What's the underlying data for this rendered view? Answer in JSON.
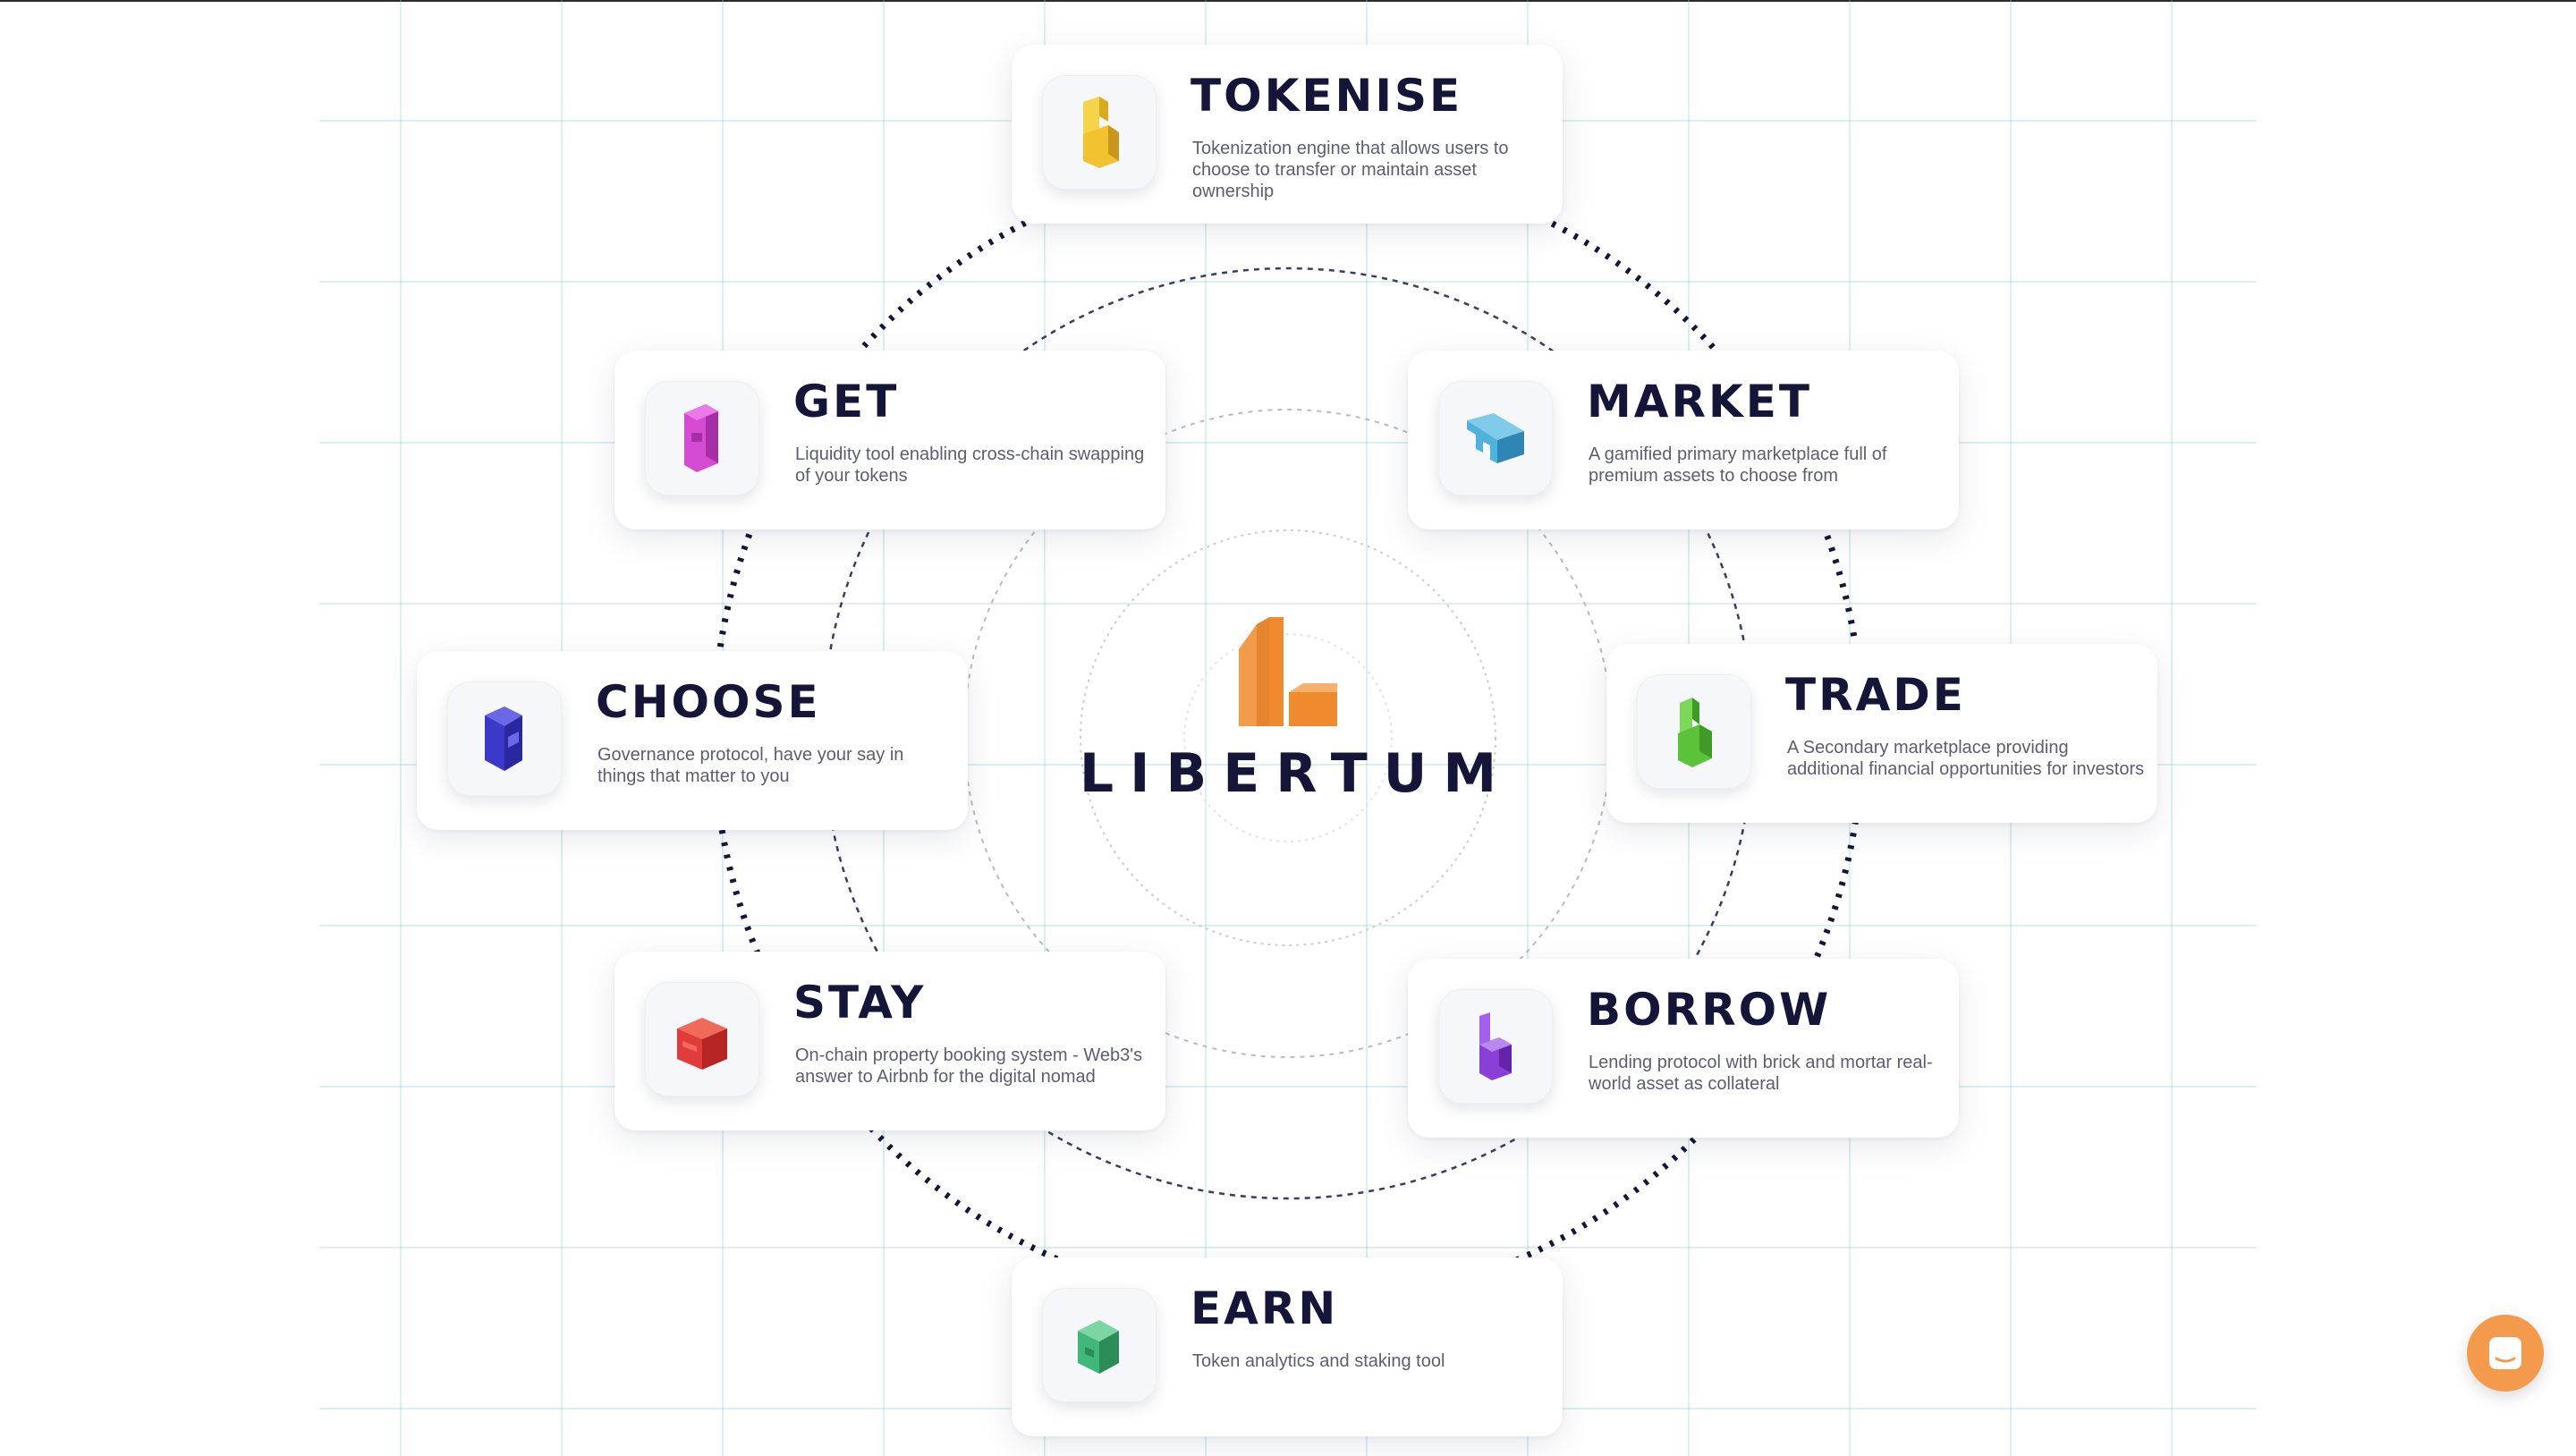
{
  "brand": {
    "name": "LIBERTUM",
    "logo_color": "#f08a2e",
    "text_color": "#141538"
  },
  "cards": [
    {
      "key": "tokenise",
      "title": "TOKENISE",
      "desc": "Tokenization engine that allows users to choose to transfer or maintain asset ownership",
      "icon": "yellow-block-icon",
      "color": "#f2c32e"
    },
    {
      "key": "get",
      "title": "GET",
      "desc": "Liquidity tool enabling cross-chain swapping of your tokens",
      "icon": "magenta-block-icon",
      "color": "#d64bd4"
    },
    {
      "key": "market",
      "title": "MARKET",
      "desc": "A gamified primary marketplace full of premium assets to choose from",
      "icon": "blue-block-icon",
      "color": "#4fb2dc"
    },
    {
      "key": "choose",
      "title": "CHOOSE",
      "desc": "Governance protocol, have your say in things that matter to you",
      "icon": "indigo-block-icon",
      "color": "#3b39c9"
    },
    {
      "key": "trade",
      "title": "TRADE",
      "desc": "A Secondary marketplace providing additional financial opportunities for investors",
      "icon": "green-block-icon",
      "color": "#5cc23a"
    },
    {
      "key": "stay",
      "title": "STAY",
      "desc": "On-chain property booking system - Web3's answer to Airbnb for the digital nomad",
      "icon": "red-block-icon",
      "color": "#e23b3b"
    },
    {
      "key": "borrow",
      "title": "BORROW",
      "desc": "Lending protocol with brick and mortar real-world asset as collateral",
      "icon": "purple-block-icon",
      "color": "#8a3fd6"
    },
    {
      "key": "earn",
      "title": "EARN",
      "desc": "Token analytics and staking tool",
      "icon": "teal-block-icon",
      "color": "#3fb879"
    }
  ],
  "chat": {
    "icon": "chat-icon",
    "color": "#f49a4d"
  }
}
